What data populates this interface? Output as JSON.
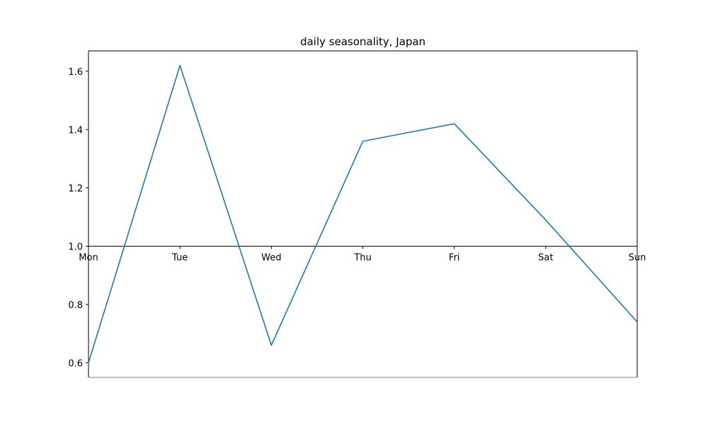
{
  "chart_data": {
    "type": "line",
    "title": "daily seasonality, Japan",
    "xlabel": "",
    "ylabel": "",
    "categories": [
      "Mon",
      "Tue",
      "Wed",
      "Thu",
      "Fri",
      "Sat",
      "Sun"
    ],
    "series": [
      {
        "values": [
          0.6,
          1.62,
          0.66,
          1.36,
          1.42,
          1.09,
          0.74
        ],
        "color": "#1f77b4"
      }
    ],
    "ylim": [
      0.55,
      1.67
    ],
    "yticks": [
      "0.6",
      "0.8",
      "1.0",
      "1.2",
      "1.4",
      "1.6"
    ],
    "x_axis_crosses_at": 1.0,
    "grid": false,
    "legend": false
  }
}
